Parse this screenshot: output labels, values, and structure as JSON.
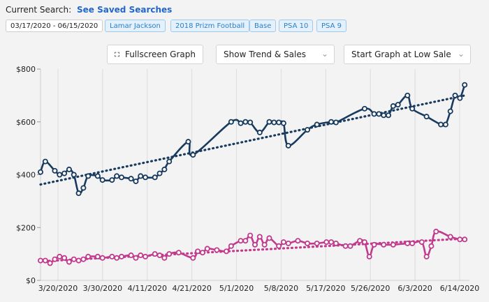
{
  "header": {
    "current_search_label": "Current Search:",
    "saved_searches_link": "See Saved Searches",
    "date_range": "03/17/2020 - 06/15/2020",
    "filters": [
      "Lamar Jackson",
      "2018 Prizm Football",
      "Base",
      "PSA 10",
      "PSA 9"
    ]
  },
  "controls": {
    "fullscreen_label": "Fullscreen Graph",
    "trend_select": "Show Trend & Sales",
    "start_select": "Start Graph at Low Sale"
  },
  "icons": {
    "fullscreen": "fullscreen-icon",
    "dropdown": "chevron-down-icon"
  },
  "colors": {
    "series_psa10": "#173a5e",
    "series_psa9": "#c13a8e"
  },
  "chart_data": {
    "type": "line",
    "x_ticks": [
      "3/20/2020",
      "3/30/2020",
      "4/11/2020",
      "4/21/2020",
      "5/1/2020",
      "5/8/2020",
      "5/17/2020",
      "5/26/2020",
      "6/3/2020",
      "6/14/2020"
    ],
    "y_ticks": [
      "$0",
      "$200",
      "$400",
      "$600",
      "$800"
    ],
    "ylim": [
      0,
      800
    ],
    "xlim": [
      "2020-03-17",
      "2020-06-15"
    ],
    "grid": "vertical",
    "series": [
      {
        "color": "#173a5e",
        "x": [
          "2020-03-17",
          "2020-03-18",
          "2020-03-20",
          "2020-03-21",
          "2020-03-22",
          "2020-03-23",
          "2020-03-24",
          "2020-03-25",
          "2020-03-26",
          "2020-03-27",
          "2020-03-29",
          "2020-03-30",
          "2020-04-01",
          "2020-04-02",
          "2020-04-03",
          "2020-04-05",
          "2020-04-06",
          "2020-04-07",
          "2020-04-08",
          "2020-04-10",
          "2020-04-11",
          "2020-04-12",
          "2020-04-13",
          "2020-04-17",
          "2020-04-18",
          "2020-04-26",
          "2020-04-28",
          "2020-04-29",
          "2020-04-30",
          "2020-05-02",
          "2020-05-04",
          "2020-05-05",
          "2020-05-06",
          "2020-05-07",
          "2020-05-08",
          "2020-05-12",
          "2020-05-14",
          "2020-05-17",
          "2020-05-18",
          "2020-05-24",
          "2020-05-26",
          "2020-05-27",
          "2020-05-28",
          "2020-05-29",
          "2020-05-30",
          "2020-05-31",
          "2020-06-02",
          "2020-06-03",
          "2020-06-06",
          "2020-06-09",
          "2020-06-10",
          "2020-06-11",
          "2020-06-12",
          "2020-06-13",
          "2020-06-14"
        ],
        "y": [
          410,
          450,
          415,
          400,
          405,
          420,
          400,
          330,
          350,
          395,
          395,
          380,
          380,
          395,
          390,
          385,
          375,
          395,
          390,
          390,
          405,
          420,
          450,
          525,
          475,
          600,
          595,
          600,
          598,
          560,
          600,
          598,
          598,
          595,
          510,
          570,
          590,
          600,
          598,
          650,
          630,
          630,
          625,
          625,
          660,
          665,
          700,
          650,
          620,
          590,
          590,
          640,
          700,
          690,
          740
        ]
      },
      {
        "color": "#c13a8e",
        "x": [
          "2020-03-17",
          "2020-03-18",
          "2020-03-19",
          "2020-03-20",
          "2020-03-21",
          "2020-03-22",
          "2020-03-23",
          "2020-03-24",
          "2020-03-25",
          "2020-03-26",
          "2020-03-27",
          "2020-03-29",
          "2020-03-30",
          "2020-04-01",
          "2020-04-02",
          "2020-04-03",
          "2020-04-05",
          "2020-04-06",
          "2020-04-07",
          "2020-04-08",
          "2020-04-10",
          "2020-04-11",
          "2020-04-12",
          "2020-04-13",
          "2020-04-15",
          "2020-04-18",
          "2020-04-19",
          "2020-04-20",
          "2020-04-21",
          "2020-04-23",
          "2020-04-25",
          "2020-04-26",
          "2020-04-28",
          "2020-04-29",
          "2020-04-30",
          "2020-05-01",
          "2020-05-02",
          "2020-05-03",
          "2020-05-04",
          "2020-05-06",
          "2020-05-07",
          "2020-05-08",
          "2020-05-10",
          "2020-05-12",
          "2020-05-14",
          "2020-05-16",
          "2020-05-17",
          "2020-05-18",
          "2020-05-20",
          "2020-05-21",
          "2020-05-23",
          "2020-05-24",
          "2020-05-25",
          "2020-05-26",
          "2020-05-28",
          "2020-05-30",
          "2020-06-02",
          "2020-06-03",
          "2020-06-05",
          "2020-06-06",
          "2020-06-07",
          "2020-06-08",
          "2020-06-11",
          "2020-06-13",
          "2020-06-14"
        ],
        "y": [
          75,
          75,
          65,
          80,
          90,
          85,
          70,
          80,
          75,
          80,
          90,
          90,
          85,
          90,
          85,
          90,
          95,
          85,
          95,
          90,
          100,
          95,
          85,
          100,
          105,
          85,
          110,
          105,
          120,
          115,
          110,
          130,
          150,
          150,
          170,
          135,
          165,
          135,
          160,
          130,
          145,
          140,
          150,
          140,
          140,
          145,
          145,
          140,
          130,
          130,
          150,
          145,
          90,
          135,
          135,
          135,
          140,
          140,
          145,
          90,
          130,
          185,
          165,
          155,
          155
        ]
      },
      {
        "color": "#173a5e",
        "style": "dotted",
        "x": [
          "2020-03-17",
          "2020-06-14"
        ],
        "y": [
          363,
          700
        ]
      },
      {
        "color": "#c13a8e",
        "style": "dotted",
        "x": [
          "2020-03-17",
          "2020-06-14"
        ],
        "y": [
          72,
          158
        ]
      }
    ]
  }
}
